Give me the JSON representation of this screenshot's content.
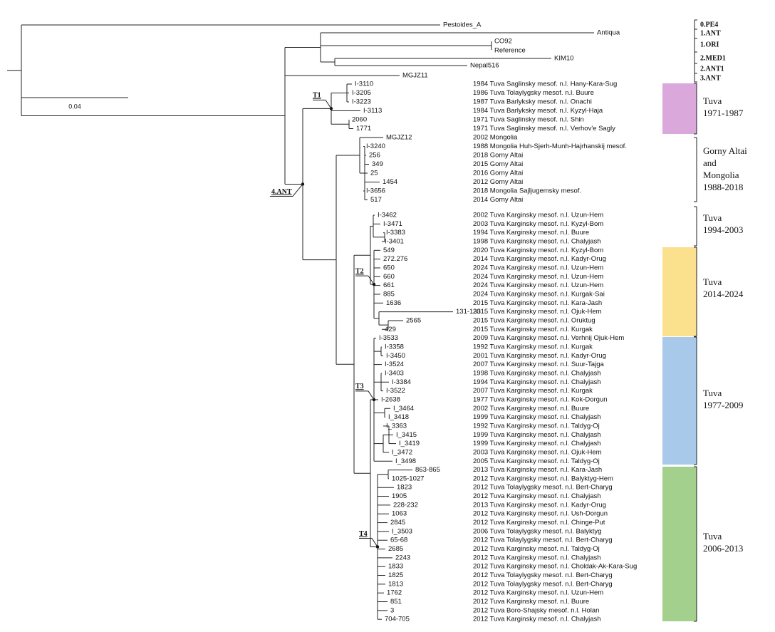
{
  "leaves": [
    {
      "label": "Pestoides_A"
    },
    {
      "label": "Antiqua"
    },
    {
      "label": "CO92",
      "note": "Reference"
    },
    {
      "label": "KIM10"
    },
    {
      "label": "Nepal516"
    },
    {
      "label": "MGJZ11"
    },
    {
      "label": "I-3110",
      "info": "1984 Tuva Saglinsky mesof. n.l. Hany-Kara-Sug"
    },
    {
      "label": "I-3205",
      "info": "1986 Tuva Tolaylygsky mesof. n.l. Buure"
    },
    {
      "label": "I-3223",
      "info": "1987 Tuva Barlyksky mesof. n.l. Onachi"
    },
    {
      "label": "I-3113",
      "info": "1984 Tuva Barlyksky mesof. n.l. Kyzyl-Haja"
    },
    {
      "label": "2060",
      "info": "1971 Tuva Saglinsky mesof. n.l. Shin"
    },
    {
      "label": "1771",
      "info": "1971 Tuva Saglinsky mesof. n.l. Verhov'e Sagly"
    },
    {
      "label": "MGJZ12",
      "info": "2002 Mongolia"
    },
    {
      "label": "I-3240",
      "info": "1988 Mongolia Huh-Sjerh-Munh-Hajrhanskij mesof."
    },
    {
      "label": "256",
      "info": "2018 Gorny Altai"
    },
    {
      "label": "349",
      "info": "2015 Gorny Altai"
    },
    {
      "label": "25",
      "info": "2016 Gorny Altai"
    },
    {
      "label": "1454",
      "info": "2012 Gorny Altai"
    },
    {
      "label": "I-3656",
      "info": "2018 Mongolia Sajljugemsky mesof."
    },
    {
      "label": "517",
      "info": "2014 Gorny Altai"
    },
    {
      "label": "I-3462",
      "info": "2002 Tuva Karginsky mesof. n.l. Uzun-Hem"
    },
    {
      "label": "I-3471",
      "info": "2003 Tuva Karginsky mesof. n.l. Kyzyl-Bom"
    },
    {
      "label": "I-3383",
      "info": "1994 Tuva Karginsky mesof. n.l. Buure"
    },
    {
      "label": "I-3401",
      "info": "1998 Tuva Karginsky mesof. n.l. Chalyjash"
    },
    {
      "label": "549",
      "info": "2020 Tuva Karginsky mesof. n.l. Kyzyl-Bom"
    },
    {
      "label": "272.276",
      "info": "2014 Tuva Karginsky mesof. n.l. Kadyr-Orug"
    },
    {
      "label": "650",
      "info": "2024 Tuva Karginsky mesof. n.l. Uzun-Hem"
    },
    {
      "label": "660",
      "info": "2024 Tuva Karginsky mesof. n.l. Uzun-Hem"
    },
    {
      "label": "661",
      "info": "2024 Tuva Karginsky mesof. n.l. Uzun-Hem"
    },
    {
      "label": "885",
      "info": "2024 Tuva Karginsky mesof. n.l. Kurgak-Sai"
    },
    {
      "label": "1636",
      "info": "2015 Tuva Karginsky mesof. n.l. Kara-Jash"
    },
    {
      "label": "131-133",
      "info": "2015 Tuva Karginsky mesof. n.l. Ojuk-Hem"
    },
    {
      "label": "2565",
      "info": "2015 Tuva Karginsky mesof. n.l. Oruktug"
    },
    {
      "label": "429",
      "info": "2015 Tuva Karginsky mesof. n.l. Kurgak"
    },
    {
      "label": "I-3533",
      "info": "2009 Tuva Karginsky mesof. n.l. Verhnij Ojuk-Hem"
    },
    {
      "label": "I-3358",
      "info": "1992 Tuva Karginsky mesof. n.l. Kurgak"
    },
    {
      "label": "I-3450",
      "info": "2001 Tuva Karginsky mesof. n.l. Kadyr-Orug"
    },
    {
      "label": "I-3524",
      "info": "2007 Tuva Karginsky mesof. n.l. Suur-Tajga"
    },
    {
      "label": "I-3403",
      "info": "1998 Tuva Karginsky mesof. n.l. Chalyjash"
    },
    {
      "label": "I-3384",
      "info": "1994 Tuva Karginsky mesof. n.l. Chalyjash"
    },
    {
      "label": "I-3522",
      "info": "2007 Tuva Karginsky mesof. n.l. Kurgak"
    },
    {
      "label": "I-2638",
      "info": "1977 Tuva Karginsky mesof. n.l. Kok-Dorgun"
    },
    {
      "label": "I_3464",
      "info": "2002 Tuva Karginsky mesof. n.l. Buure"
    },
    {
      "label": "I_3418",
      "info": "1999 Tuva Karginsky mesof. n.l. Chalyjash"
    },
    {
      "label": "I_3363",
      "info": "1992 Tuva Karginsky mesof. n.l. Taldyg-Oj"
    },
    {
      "label": "I_3415",
      "info": "1999 Tuva Karginsky mesof. n.l. Chalyjash"
    },
    {
      "label": "I_3419",
      "info": "1999 Tuva Karginsky mesof. n.l. Chalyjash"
    },
    {
      "label": "I_3472",
      "info": "2003 Tuva Karginsky mesof. n.l. Ojuk-Hem"
    },
    {
      "label": "I_3498",
      "info": "2005 Tuva Karginsky mesof. n.l. Taldyg-Oj"
    },
    {
      "label": "863-865",
      "info": "2013 Tuva Karginsky mesof. n.l. Kara-Jash"
    },
    {
      "label": "1025-1027",
      "info": "2012 Tuva Karginsky mesof. n.l. Balyktyg-Hem"
    },
    {
      "label": "1823",
      "info": "2012 Tuva Tolaylygsky mesof. n.l. Bert-Charyg"
    },
    {
      "label": "1905",
      "info": "2012 Tuva Karginsky mesof. n.l. Chalyjash"
    },
    {
      "label": "228-232",
      "info": "2013 Tuva Karginsky mesof. n.l. Kadyr-Orug"
    },
    {
      "label": "1063",
      "info": "2012 Tuva Karginsky mesof. n.l. Ush-Dorgun"
    },
    {
      "label": "2845",
      "info": "2012 Tuva Karginsky mesof. n.l. Chinge-Put"
    },
    {
      "label": "I_3503",
      "info": "2006 Tuva Tolaylygsky mesof. n.l. Balyktyg"
    },
    {
      "label": "65-68",
      "info": "2012 Tuva Tolaylygsky mesof. n.l. Bert-Charyg"
    },
    {
      "label": "2685",
      "info": "2012 Tuva Karginsky mesof. n.l. Taldyg-Oj"
    },
    {
      "label": "2243",
      "info": "2012 Tuva Karginsky mesof. n.l. Chalyjash"
    },
    {
      "label": "1833",
      "info": "2012 Tuva Karginsky mesof. n.l. Choldak-Ak-Kara-Sug"
    },
    {
      "label": "1825",
      "info": "2012 Tuva Tolaylygsky mesof. n.l. Bert-Charyg"
    },
    {
      "label": "1813",
      "info": "2012 Tuva Tolaylygsky mesof. n.l. Bert-Charyg"
    },
    {
      "label": "1762",
      "info": "2012 Tuva Karginsky mesof. n.l. Uzun-Hem"
    },
    {
      "label": "851",
      "info": "2012 Tuva Karginsky mesof. n.l. Buure"
    },
    {
      "label": "3",
      "info": "2012 Tuva Boro-Shajsky mesof. n.l. Holan"
    },
    {
      "label": "704-705",
      "info": "2012 Tuva Karginsky mesof. n.l. Chalyjash"
    }
  ],
  "node_labels": [
    {
      "label": "T1"
    },
    {
      "label": "T2"
    },
    {
      "label": "T3"
    },
    {
      "label": "T4"
    },
    {
      "label": "4.ANT"
    }
  ],
  "lineages": [
    "0.PE4",
    "1.ANT",
    "1.ORI",
    "2.MED1",
    "2.ANT1",
    "3.ANT"
  ],
  "groups": [
    {
      "lines": [
        "Tuva",
        "1971-1987"
      ],
      "color": "#dba8dc"
    },
    {
      "lines": [
        "Gorny Altai",
        "and",
        "Mongolia",
        "1988-2018"
      ]
    },
    {
      "lines": [
        "Tuva",
        "1994-2003"
      ]
    },
    {
      "lines": [
        "Tuva",
        "2014-2024"
      ],
      "color": "#fbe08e"
    },
    {
      "lines": [
        "Tuva",
        "1977-2009"
      ],
      "color": "#a9c9ea"
    },
    {
      "lines": [
        "Tuva",
        "2006-2013"
      ],
      "color": "#a3d08c"
    }
  ],
  "scale_bar": {
    "label": "0.04"
  }
}
